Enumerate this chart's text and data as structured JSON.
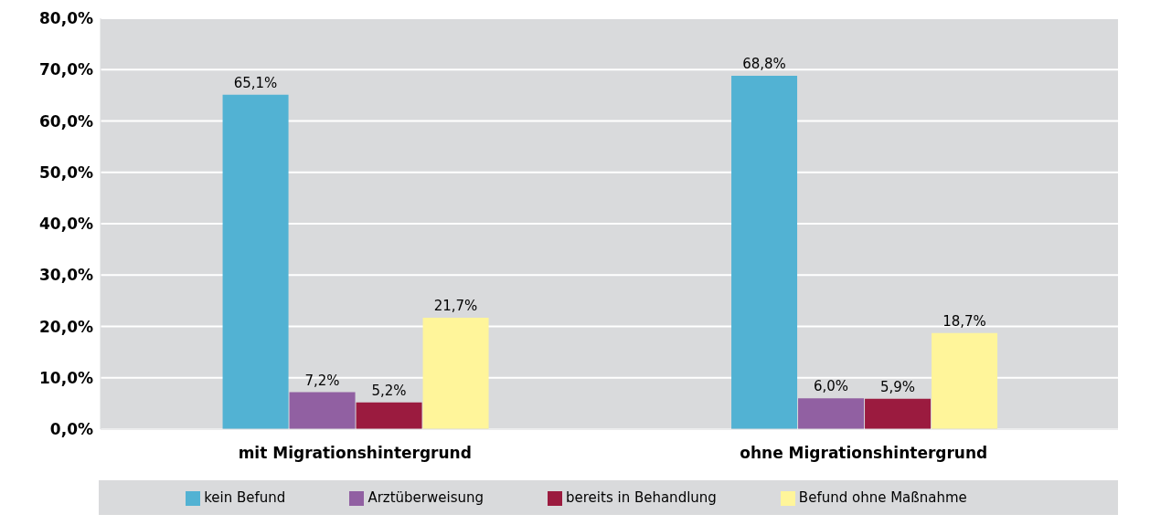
{
  "chart_data": {
    "type": "bar",
    "categories": [
      "mit Migrationshintergrund",
      "ohne Migrationshintergrund"
    ],
    "series": [
      {
        "name": "kein Befund",
        "color": "#52b2d3",
        "values": [
          65.1,
          68.8
        ],
        "value_labels": [
          "65,1%",
          "68,8%"
        ]
      },
      {
        "name": "Arztüberweisung",
        "color": "#9160a2",
        "values": [
          7.2,
          6.0
        ],
        "value_labels": [
          "7,2%",
          "6,0%"
        ]
      },
      {
        "name": "bereits in Behandlung",
        "color": "#9b1b3f",
        "values": [
          5.2,
          5.9
        ],
        "value_labels": [
          "5,2%",
          "5,9%"
        ]
      },
      {
        "name": "Befund ohne Maßnahme",
        "color": "#fff59a",
        "values": [
          21.7,
          18.7
        ],
        "value_labels": [
          "21,7%",
          "18,7%"
        ]
      }
    ],
    "ylim": [
      0,
      80
    ],
    "yticks": [
      {
        "value": 0,
        "label": "0,0%"
      },
      {
        "value": 10,
        "label": "10,0%"
      },
      {
        "value": 20,
        "label": "20,0%"
      },
      {
        "value": 30,
        "label": "30,0%"
      },
      {
        "value": 40,
        "label": "40,0%"
      },
      {
        "value": 50,
        "label": "50,0%"
      },
      {
        "value": 60,
        "label": "60,0%"
      },
      {
        "value": 70,
        "label": "70,0%"
      },
      {
        "value": 80,
        "label": "80,0%"
      }
    ],
    "grid": "y",
    "legend": "bottom"
  }
}
